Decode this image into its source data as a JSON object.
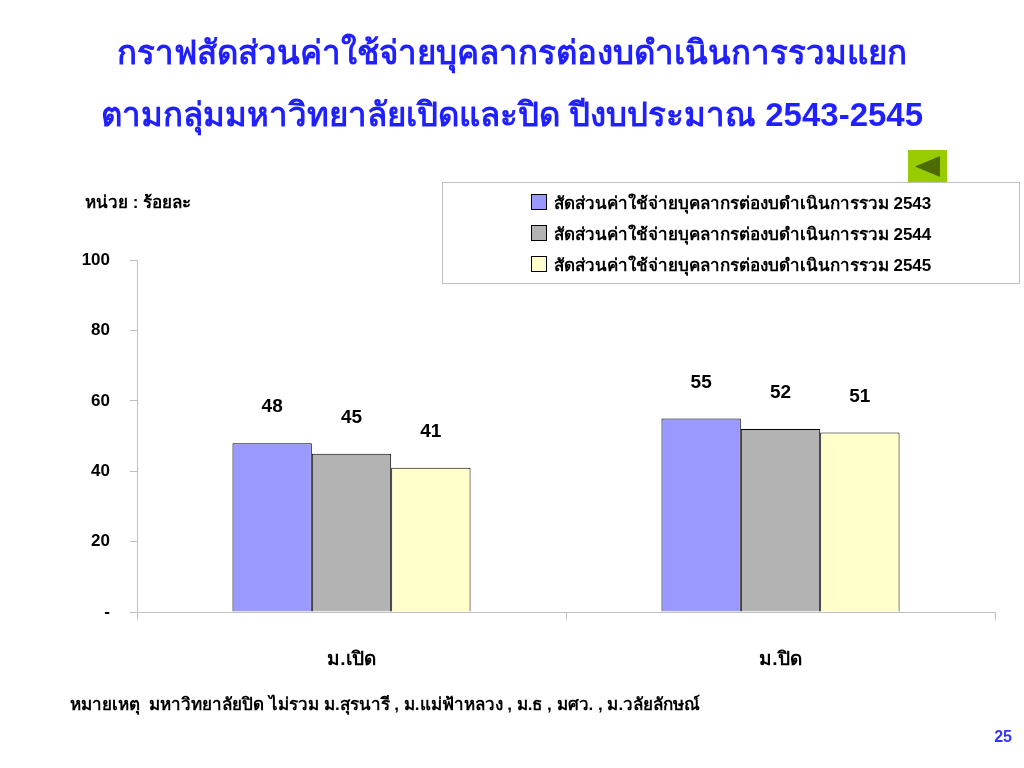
{
  "chart_data": {
    "type": "bar",
    "title": "กราฟสัดส่วนค่าใช้จ่ายบุคลากรต่องบดำเนินการรวมแยก\nตามกลุ่มมหาวิทยาลัยเปิดและปิด ปีงบประมาณ 2543-2545",
    "ylabel": "หน่วย : ร้อยละ",
    "categories": [
      "ม.เปิด",
      "ม.ปิด"
    ],
    "series": [
      {
        "name": "สัดส่วนค่าใช้จ่ายบุคลากรต่องบดำเนินการรวม 2543",
        "color": "#9999ff",
        "values": [
          48,
          55
        ]
      },
      {
        "name": "สัดส่วนค่าใช้จ่ายบุคลากรต่องบดำเนินการรวม 2544",
        "color": "#b3b3b3",
        "values": [
          45,
          52
        ]
      },
      {
        "name": "สัดส่วนค่าใช้จ่ายบุคลากรต่องบดำเนินการรวม 2545",
        "color": "#ffffcc",
        "values": [
          41,
          51
        ]
      }
    ],
    "ylim": [
      0,
      100
    ],
    "yticks": [
      {
        "value": 0,
        "label": "-"
      },
      20,
      40,
      60,
      80,
      100
    ],
    "data_labels": true,
    "legend": "top right",
    "annotations": [
      "หมายเหตุ  มหาวิทยาลัยปิด ไม่รวม ม.สุรนารี , ม.แม่ฟ้าหลวง , ม.ธ , มศว. , ม.วลัยลักษณ์",
      "25"
    ]
  }
}
